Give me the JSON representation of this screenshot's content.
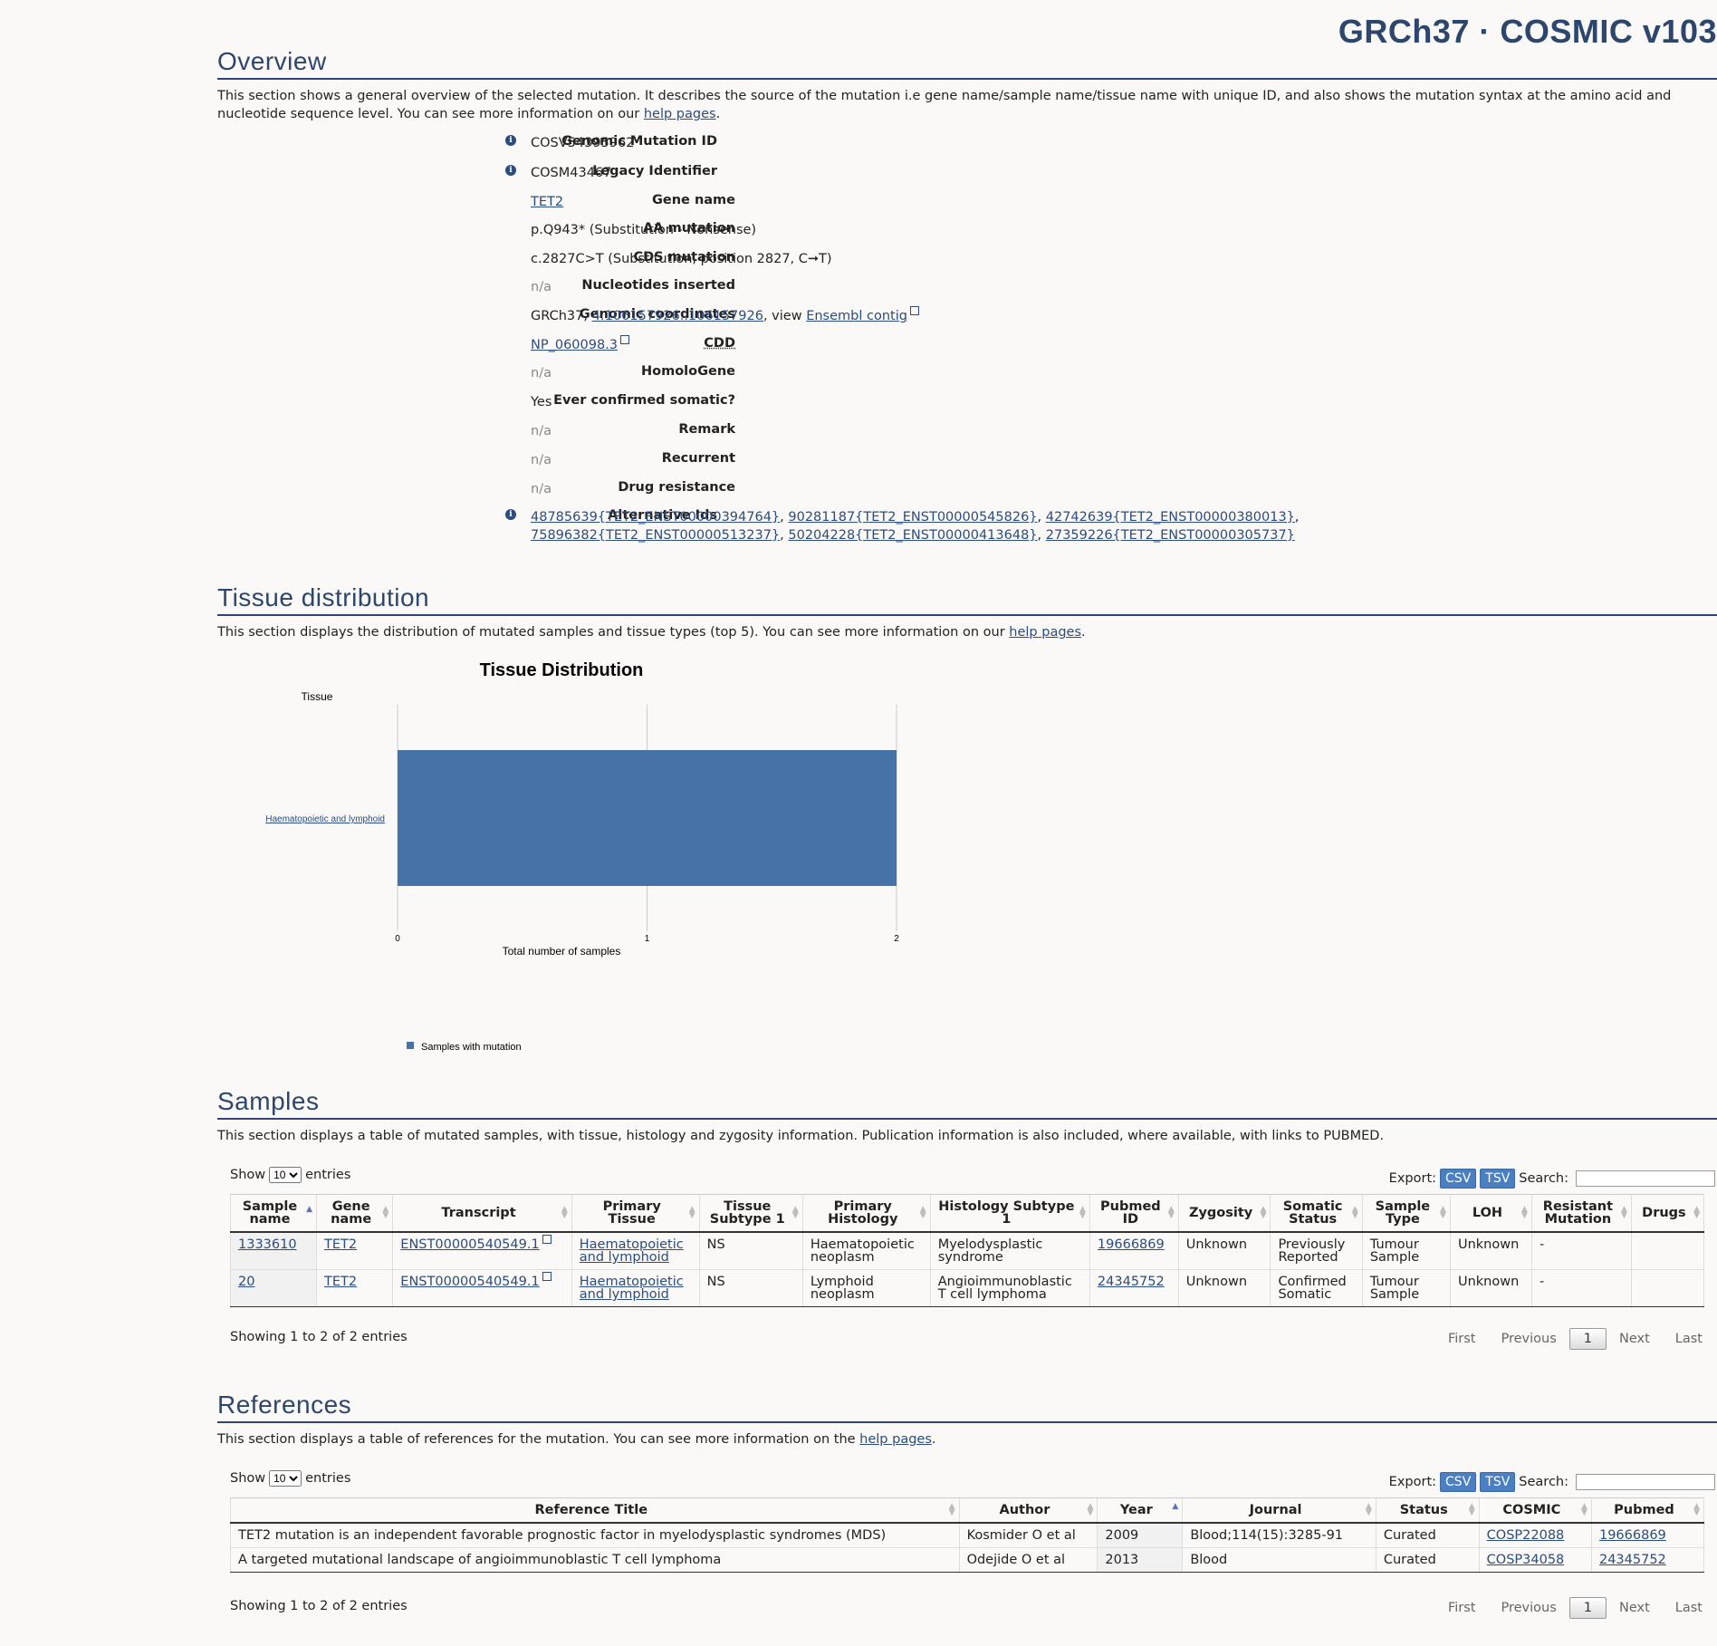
{
  "brand": "GRCh37 · COSMIC v103",
  "overview": {
    "title": "Overview",
    "desc_pre": "This section shows a general overview of the selected mutation. It describes the source of the mutation i.e gene name/sample name/tissue name with unique ID, and also shows the mutation syntax at the amino acid and nucleotide sequence level. You can see more information on our ",
    "desc_link": "help pages",
    "desc_post": ".",
    "genomic_mutation_id_label": "Genomic Mutation ID",
    "genomic_mutation_id": "COSV54395962",
    "legacy_identifier_label": "Legacy Identifier",
    "legacy_identifier": "COSM43467",
    "gene_name_label": "Gene name",
    "gene_name": "TET2",
    "aa_mutation_label": "AA mutation",
    "aa_mutation": "p.Q943* (Substitution - Nonsense)",
    "cds_mutation_label": "CDS mutation",
    "cds_mutation": "c.2827C>T (Substitution, position 2827, C➞T)",
    "nucleotides_inserted_label": "Nucleotides inserted",
    "nucleotides_inserted": "n/a",
    "genomic_coordinates_label": "Genomic coordinates",
    "genomic_coordinates_pre": "GRCh37, ",
    "genomic_coordinates_link": "4:106157926..106157926",
    "genomic_coordinates_mid": ", view ",
    "genomic_coordinates_link2": "Ensembl contig",
    "cdd_label": "CDD",
    "cdd": "NP_060098.3",
    "homologene_label": "HomoloGene",
    "homologene": "n/a",
    "ever_confirmed_label": "Ever confirmed somatic?",
    "ever_confirmed": "Yes",
    "remark_label": "Remark",
    "remark": "n/a",
    "recurrent_label": "Recurrent",
    "recurrent": "n/a",
    "drug_resistance_label": "Drug resistance",
    "drug_resistance": "n/a",
    "alternative_ids_label": "Alternative Ids",
    "alternative_ids": [
      "48785639{TET2_ENST00000394764}",
      "90281187{TET2_ENST00000545826}",
      "42742639{TET2_ENST00000380013}",
      "75896382{TET2_ENST00000513237}",
      "50204228{TET2_ENST00000413648}",
      "27359226{TET2_ENST00000305737}"
    ]
  },
  "tissue": {
    "title": "Tissue distribution",
    "desc_pre": "This section displays the distribution of mutated samples and tissue types (top 5). You can see more information on our ",
    "desc_link": "help pages",
    "desc_post": "."
  },
  "chart_data": {
    "type": "bar",
    "orientation": "horizontal",
    "title": "Tissue Distribution",
    "ylabel": "Tissue",
    "xlabel": "Total number of samples",
    "categories": [
      "Haematopoietic and lymphoid"
    ],
    "series": [
      {
        "name": "Samples with mutation",
        "values": [
          2
        ],
        "color": "#4672a8"
      }
    ],
    "xlim": [
      0,
      2
    ],
    "xticks": [
      "0",
      "1",
      "2"
    ],
    "grid": true,
    "legend": "bottom"
  },
  "samples": {
    "title": "Samples",
    "desc": "This section displays a table of mutated samples, with tissue, histology and zygosity information. Publication information is also included, where available, with links to PUBMED.",
    "show": "Show",
    "entries": "entries",
    "page_size": "10",
    "export": "Export:",
    "csv": "CSV",
    "tsv": "TSV",
    "search": "Search:",
    "columns": [
      "Sample name",
      "Gene name",
      "Transcript",
      "Primary Tissue",
      "Tissue Subtype 1",
      "Primary Histology",
      "Histology Subtype 1",
      "Pubmed ID",
      "Zygosity",
      "Somatic Status",
      "Sample Type",
      "LOH",
      "Resistant Mutation",
      "Drugs"
    ],
    "rows": [
      [
        "1333610",
        "TET2",
        "ENST00000540549.1",
        "Haematopoietic and lymphoid",
        "NS",
        "Haematopoietic neoplasm",
        "Myelodysplastic syndrome",
        "19666869",
        "Unknown",
        "Previously Reported",
        "Tumour Sample",
        "Unknown",
        "-",
        ""
      ],
      [
        "20",
        "TET2",
        "ENST00000540549.1",
        "Haematopoietic and lymphoid",
        "NS",
        "Lymphoid neoplasm",
        "Angioimmunoblastic T cell lymphoma",
        "24345752",
        "Unknown",
        "Confirmed Somatic",
        "Tumour Sample",
        "Unknown",
        "-",
        ""
      ]
    ],
    "info": "Showing 1 to 2 of 2 entries",
    "first": "First",
    "previous": "Previous",
    "page": "1",
    "next": "Next",
    "last": "Last"
  },
  "references": {
    "title": "References",
    "desc_pre": "This section displays a table of references for the mutation. You can see more information on the ",
    "desc_link": "help pages",
    "desc_post": ".",
    "show": "Show",
    "entries": "entries",
    "page_size": "10",
    "export": "Export:",
    "csv": "CSV",
    "tsv": "TSV",
    "search": "Search:",
    "columns": [
      "Reference Title",
      "Author",
      "Year",
      "Journal",
      "Status",
      "COSMIC",
      "Pubmed"
    ],
    "rows": [
      [
        "TET2 mutation is an independent favorable prognostic factor in myelodysplastic syndromes (MDS)",
        "Kosmider O et al",
        "2009",
        "Blood;114(15):3285-91",
        "Curated",
        "COSP22088",
        "19666869"
      ],
      [
        "A targeted mutational landscape of angioimmunoblastic T cell lymphoma",
        "Odejide O et al",
        "2013",
        "Blood",
        "Curated",
        "COSP34058",
        "24345752"
      ]
    ],
    "info": "Showing 1 to 2 of 2 entries",
    "first": "First",
    "previous": "Previous",
    "page": "1",
    "next": "Next",
    "last": "Last"
  }
}
